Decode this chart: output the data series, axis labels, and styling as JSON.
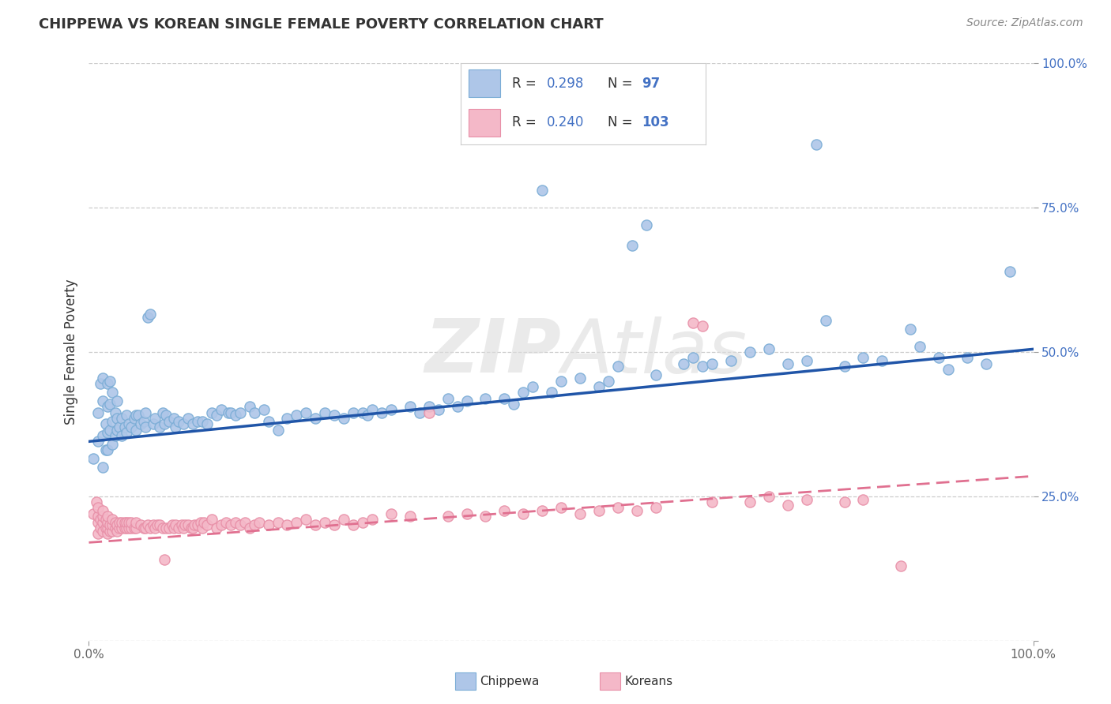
{
  "title": "CHIPPEWA VS KOREAN SINGLE FEMALE POVERTY CORRELATION CHART",
  "source": "Source: ZipAtlas.com",
  "ylabel": "Single Female Poverty",
  "xlim": [
    0,
    1
  ],
  "ylim": [
    0,
    1
  ],
  "ytick_positions": [
    0.0,
    0.25,
    0.5,
    0.75,
    1.0
  ],
  "ytick_labels_right": [
    "",
    "25.0%",
    "50.0%",
    "75.0%",
    "100.0%"
  ],
  "right_tick_color": "#4472C4",
  "chippewa_color": "#AEC6E8",
  "korean_color": "#F4B8C8",
  "chippewa_edge_color": "#7BADD6",
  "korean_edge_color": "#E890A8",
  "chippewa_line_color": "#2055A8",
  "korean_line_color": "#E07090",
  "legend_R1": "0.298",
  "legend_N1": "97",
  "legend_R2": "0.240",
  "legend_N2": "103",
  "legend_text_color": "#4472C4",
  "legend_R_color": "#333333",
  "watermark": "ZIPAtlas",
  "background_color": "#ffffff",
  "grid_color": "#CCCCCC",
  "chippewa_trend_x": [
    0.0,
    1.0
  ],
  "chippewa_trend_y": [
    0.345,
    0.505
  ],
  "korean_trend_x": [
    0.0,
    1.0
  ],
  "korean_trend_y": [
    0.17,
    0.285
  ],
  "chippewa_dots": [
    [
      0.005,
      0.315
    ],
    [
      0.01,
      0.345
    ],
    [
      0.01,
      0.395
    ],
    [
      0.012,
      0.445
    ],
    [
      0.015,
      0.3
    ],
    [
      0.015,
      0.355
    ],
    [
      0.015,
      0.415
    ],
    [
      0.015,
      0.455
    ],
    [
      0.018,
      0.33
    ],
    [
      0.018,
      0.375
    ],
    [
      0.02,
      0.33
    ],
    [
      0.02,
      0.36
    ],
    [
      0.02,
      0.405
    ],
    [
      0.02,
      0.445
    ],
    [
      0.022,
      0.365
    ],
    [
      0.022,
      0.41
    ],
    [
      0.022,
      0.45
    ],
    [
      0.025,
      0.34
    ],
    [
      0.025,
      0.38
    ],
    [
      0.025,
      0.43
    ],
    [
      0.028,
      0.355
    ],
    [
      0.028,
      0.395
    ],
    [
      0.03,
      0.365
    ],
    [
      0.03,
      0.385
    ],
    [
      0.03,
      0.415
    ],
    [
      0.032,
      0.37
    ],
    [
      0.035,
      0.355
    ],
    [
      0.035,
      0.385
    ],
    [
      0.038,
      0.37
    ],
    [
      0.04,
      0.36
    ],
    [
      0.04,
      0.39
    ],
    [
      0.042,
      0.375
    ],
    [
      0.045,
      0.37
    ],
    [
      0.048,
      0.385
    ],
    [
      0.05,
      0.365
    ],
    [
      0.05,
      0.39
    ],
    [
      0.052,
      0.39
    ],
    [
      0.055,
      0.375
    ],
    [
      0.058,
      0.38
    ],
    [
      0.06,
      0.37
    ],
    [
      0.06,
      0.395
    ],
    [
      0.062,
      0.56
    ],
    [
      0.065,
      0.565
    ],
    [
      0.068,
      0.375
    ],
    [
      0.07,
      0.385
    ],
    [
      0.075,
      0.37
    ],
    [
      0.078,
      0.395
    ],
    [
      0.08,
      0.375
    ],
    [
      0.082,
      0.39
    ],
    [
      0.085,
      0.38
    ],
    [
      0.09,
      0.385
    ],
    [
      0.092,
      0.37
    ],
    [
      0.095,
      0.38
    ],
    [
      0.1,
      0.375
    ],
    [
      0.105,
      0.385
    ],
    [
      0.11,
      0.375
    ],
    [
      0.115,
      0.38
    ],
    [
      0.12,
      0.38
    ],
    [
      0.125,
      0.375
    ],
    [
      0.13,
      0.395
    ],
    [
      0.135,
      0.39
    ],
    [
      0.14,
      0.4
    ],
    [
      0.148,
      0.395
    ],
    [
      0.15,
      0.395
    ],
    [
      0.155,
      0.39
    ],
    [
      0.16,
      0.395
    ],
    [
      0.17,
      0.405
    ],
    [
      0.175,
      0.395
    ],
    [
      0.185,
      0.4
    ],
    [
      0.19,
      0.38
    ],
    [
      0.2,
      0.365
    ],
    [
      0.21,
      0.385
    ],
    [
      0.22,
      0.39
    ],
    [
      0.23,
      0.395
    ],
    [
      0.24,
      0.385
    ],
    [
      0.25,
      0.395
    ],
    [
      0.26,
      0.39
    ],
    [
      0.27,
      0.385
    ],
    [
      0.28,
      0.395
    ],
    [
      0.29,
      0.395
    ],
    [
      0.295,
      0.39
    ],
    [
      0.3,
      0.4
    ],
    [
      0.31,
      0.395
    ],
    [
      0.32,
      0.4
    ],
    [
      0.34,
      0.405
    ],
    [
      0.35,
      0.395
    ],
    [
      0.36,
      0.405
    ],
    [
      0.37,
      0.4
    ],
    [
      0.38,
      0.42
    ],
    [
      0.39,
      0.405
    ],
    [
      0.4,
      0.415
    ],
    [
      0.42,
      0.42
    ],
    [
      0.44,
      0.42
    ],
    [
      0.45,
      0.41
    ],
    [
      0.46,
      0.43
    ],
    [
      0.47,
      0.44
    ],
    [
      0.48,
      0.78
    ],
    [
      0.49,
      0.43
    ],
    [
      0.5,
      0.45
    ],
    [
      0.52,
      0.455
    ],
    [
      0.54,
      0.44
    ],
    [
      0.55,
      0.45
    ],
    [
      0.56,
      0.475
    ],
    [
      0.575,
      0.685
    ],
    [
      0.59,
      0.72
    ],
    [
      0.6,
      0.46
    ],
    [
      0.63,
      0.48
    ],
    [
      0.64,
      0.49
    ],
    [
      0.65,
      0.475
    ],
    [
      0.66,
      0.48
    ],
    [
      0.68,
      0.485
    ],
    [
      0.7,
      0.5
    ],
    [
      0.72,
      0.505
    ],
    [
      0.74,
      0.48
    ],
    [
      0.76,
      0.485
    ],
    [
      0.77,
      0.86
    ],
    [
      0.78,
      0.555
    ],
    [
      0.8,
      0.475
    ],
    [
      0.82,
      0.49
    ],
    [
      0.84,
      0.485
    ],
    [
      0.87,
      0.54
    ],
    [
      0.88,
      0.51
    ],
    [
      0.9,
      0.49
    ],
    [
      0.91,
      0.47
    ],
    [
      0.93,
      0.49
    ],
    [
      0.95,
      0.48
    ],
    [
      0.975,
      0.64
    ]
  ],
  "korean_dots": [
    [
      0.005,
      0.22
    ],
    [
      0.008,
      0.24
    ],
    [
      0.01,
      0.185
    ],
    [
      0.01,
      0.205
    ],
    [
      0.01,
      0.215
    ],
    [
      0.01,
      0.23
    ],
    [
      0.012,
      0.195
    ],
    [
      0.012,
      0.21
    ],
    [
      0.015,
      0.19
    ],
    [
      0.015,
      0.205
    ],
    [
      0.015,
      0.215
    ],
    [
      0.015,
      0.225
    ],
    [
      0.018,
      0.195
    ],
    [
      0.018,
      0.21
    ],
    [
      0.02,
      0.185
    ],
    [
      0.02,
      0.195
    ],
    [
      0.02,
      0.205
    ],
    [
      0.02,
      0.215
    ],
    [
      0.022,
      0.19
    ],
    [
      0.022,
      0.2
    ],
    [
      0.025,
      0.19
    ],
    [
      0.025,
      0.2
    ],
    [
      0.025,
      0.21
    ],
    [
      0.028,
      0.195
    ],
    [
      0.028,
      0.205
    ],
    [
      0.03,
      0.19
    ],
    [
      0.03,
      0.2
    ],
    [
      0.032,
      0.195
    ],
    [
      0.032,
      0.205
    ],
    [
      0.035,
      0.195
    ],
    [
      0.035,
      0.205
    ],
    [
      0.038,
      0.195
    ],
    [
      0.038,
      0.205
    ],
    [
      0.04,
      0.195
    ],
    [
      0.04,
      0.205
    ],
    [
      0.042,
      0.195
    ],
    [
      0.042,
      0.205
    ],
    [
      0.045,
      0.195
    ],
    [
      0.045,
      0.205
    ],
    [
      0.048,
      0.195
    ],
    [
      0.05,
      0.195
    ],
    [
      0.05,
      0.205
    ],
    [
      0.055,
      0.2
    ],
    [
      0.058,
      0.195
    ],
    [
      0.06,
      0.195
    ],
    [
      0.062,
      0.2
    ],
    [
      0.065,
      0.195
    ],
    [
      0.068,
      0.2
    ],
    [
      0.07,
      0.195
    ],
    [
      0.072,
      0.2
    ],
    [
      0.075,
      0.2
    ],
    [
      0.078,
      0.195
    ],
    [
      0.08,
      0.14
    ],
    [
      0.082,
      0.195
    ],
    [
      0.085,
      0.195
    ],
    [
      0.088,
      0.2
    ],
    [
      0.09,
      0.195
    ],
    [
      0.092,
      0.2
    ],
    [
      0.095,
      0.195
    ],
    [
      0.098,
      0.2
    ],
    [
      0.1,
      0.195
    ],
    [
      0.102,
      0.2
    ],
    [
      0.105,
      0.2
    ],
    [
      0.108,
      0.195
    ],
    [
      0.11,
      0.195
    ],
    [
      0.112,
      0.2
    ],
    [
      0.115,
      0.2
    ],
    [
      0.118,
      0.205
    ],
    [
      0.12,
      0.195
    ],
    [
      0.122,
      0.205
    ],
    [
      0.125,
      0.2
    ],
    [
      0.13,
      0.21
    ],
    [
      0.135,
      0.195
    ],
    [
      0.14,
      0.2
    ],
    [
      0.145,
      0.205
    ],
    [
      0.15,
      0.2
    ],
    [
      0.155,
      0.205
    ],
    [
      0.16,
      0.2
    ],
    [
      0.165,
      0.205
    ],
    [
      0.17,
      0.195
    ],
    [
      0.175,
      0.2
    ],
    [
      0.18,
      0.205
    ],
    [
      0.19,
      0.2
    ],
    [
      0.2,
      0.205
    ],
    [
      0.21,
      0.2
    ],
    [
      0.22,
      0.205
    ],
    [
      0.23,
      0.21
    ],
    [
      0.24,
      0.2
    ],
    [
      0.25,
      0.205
    ],
    [
      0.26,
      0.2
    ],
    [
      0.27,
      0.21
    ],
    [
      0.28,
      0.2
    ],
    [
      0.29,
      0.205
    ],
    [
      0.3,
      0.21
    ],
    [
      0.32,
      0.22
    ],
    [
      0.34,
      0.215
    ],
    [
      0.36,
      0.395
    ],
    [
      0.38,
      0.215
    ],
    [
      0.4,
      0.22
    ],
    [
      0.42,
      0.215
    ],
    [
      0.44,
      0.225
    ],
    [
      0.46,
      0.22
    ],
    [
      0.48,
      0.225
    ],
    [
      0.5,
      0.23
    ],
    [
      0.52,
      0.22
    ],
    [
      0.54,
      0.225
    ],
    [
      0.56,
      0.23
    ],
    [
      0.58,
      0.225
    ],
    [
      0.6,
      0.23
    ],
    [
      0.64,
      0.55
    ],
    [
      0.65,
      0.545
    ],
    [
      0.66,
      0.24
    ],
    [
      0.7,
      0.24
    ],
    [
      0.72,
      0.25
    ],
    [
      0.74,
      0.235
    ],
    [
      0.76,
      0.245
    ],
    [
      0.8,
      0.24
    ],
    [
      0.82,
      0.245
    ],
    [
      0.86,
      0.13
    ]
  ]
}
